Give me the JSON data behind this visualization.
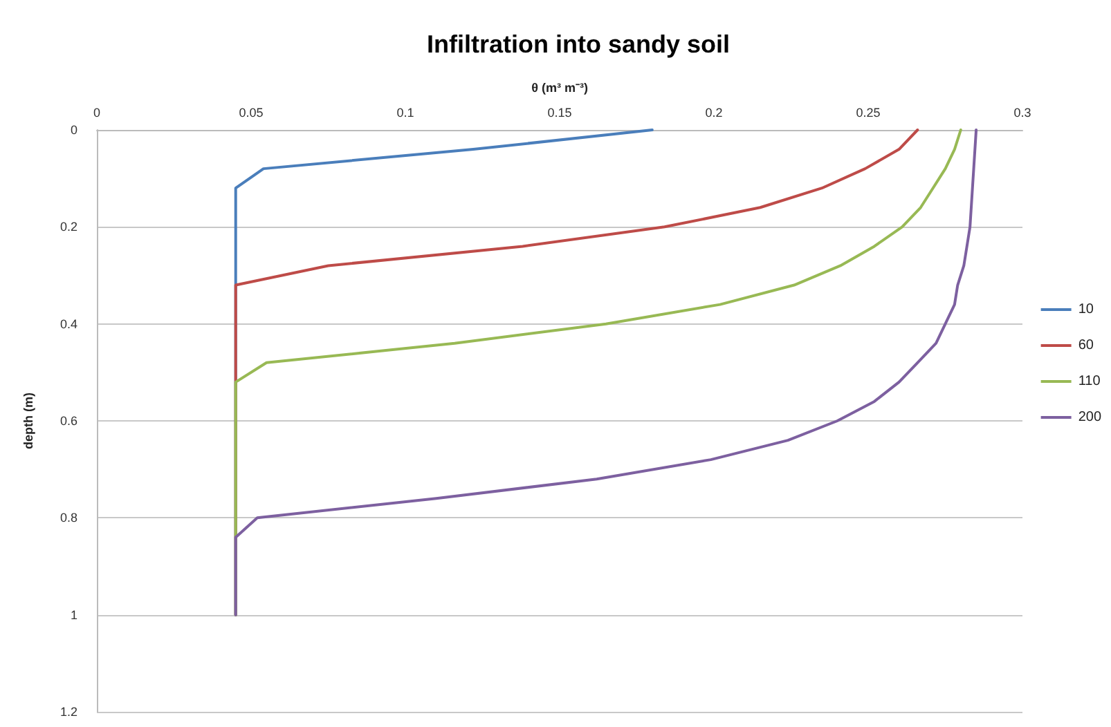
{
  "chart_data": {
    "type": "line",
    "title": "Infiltration into sandy soil",
    "xlabel": "θ (m³ m⁻³)",
    "ylabel": "depth (m)",
    "xlim": [
      0,
      0.3
    ],
    "xticks": [
      0,
      0.05,
      0.1,
      0.15,
      0.2,
      0.25,
      0.3
    ],
    "ylim": [
      1.2,
      0
    ],
    "yticks": [
      0,
      0.2,
      0.4,
      0.6,
      0.8,
      1,
      1.2
    ],
    "grid": "y",
    "legend": "right",
    "marker": "none",
    "line_style": "solid",
    "series": [
      {
        "name": "10",
        "color": "#4a7ebb",
        "x": [
          0.18,
          0.122,
          0.054,
          0.045,
          0.045
        ],
        "values": [
          0,
          0.04,
          0.08,
          0.12,
          1
        ]
      },
      {
        "name": "60",
        "color": "#be4b48",
        "x": [
          0.266,
          0.26,
          0.249,
          0.235,
          0.215,
          0.184,
          0.138,
          0.075,
          0.045,
          0.045
        ],
        "values": [
          0,
          0.04,
          0.08,
          0.12,
          0.16,
          0.2,
          0.24,
          0.28,
          0.32,
          1
        ]
      },
      {
        "name": "110",
        "color": "#98b954",
        "x": [
          0.28,
          0.278,
          0.275,
          0.271,
          0.267,
          0.261,
          0.252,
          0.241,
          0.226,
          0.202,
          0.165,
          0.116,
          0.055,
          0.045,
          0.045
        ],
        "values": [
          0,
          0.04,
          0.08,
          0.12,
          0.16,
          0.2,
          0.24,
          0.28,
          0.32,
          0.36,
          0.4,
          0.44,
          0.48,
          0.52,
          1
        ]
      },
      {
        "name": "200",
        "color": "#7d60a0",
        "x": [
          0.285,
          0.284,
          0.283,
          0.281,
          0.279,
          0.278,
          0.275,
          0.272,
          0.266,
          0.26,
          0.252,
          0.24,
          0.224,
          0.199,
          0.162,
          0.11,
          0.052,
          0.045,
          0.045
        ],
        "values": [
          0,
          0.1,
          0.2,
          0.28,
          0.32,
          0.36,
          0.4,
          0.44,
          0.48,
          0.52,
          0.56,
          0.6,
          0.64,
          0.68,
          0.72,
          0.76,
          0.8,
          0.84,
          1
        ]
      }
    ]
  }
}
